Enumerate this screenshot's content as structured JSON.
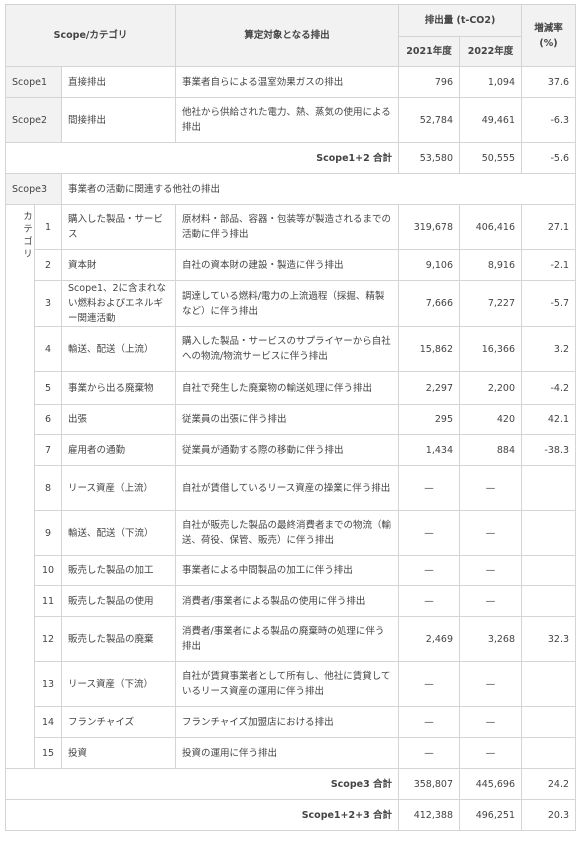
{
  "headers": {
    "scope_category": "Scope/カテゴリ",
    "target": "算定対象となる排出",
    "emissions": "排出量 (t-CO2)",
    "rate": "増減率 (%)",
    "year_2021": "2021年度",
    "year_2022": "2022年度"
  },
  "scope1": {
    "name": "Scope1",
    "label": "直接排出",
    "desc": "事業者自らによる温室効果ガスの排出",
    "v2021": "796",
    "v2022": "1,094",
    "rate": "37.6"
  },
  "scope2": {
    "name": "Scope2",
    "label": "間接排出",
    "desc": "他社から供給された電力、熱、蒸気の使用による排出",
    "v2021": "52,784",
    "v2022": "49,461",
    "rate": "-6.3"
  },
  "total12": {
    "label": "Scope1+2 合計",
    "v2021": "53,580",
    "v2022": "50,555",
    "rate": "-5.6"
  },
  "scope3": {
    "name": "Scope3",
    "label": "事業者の活動に関連する他社の排出",
    "category_label": "カテゴリ"
  },
  "categories": [
    {
      "no": "1",
      "name": "購入した製品・サービス",
      "desc": "原材料・部品、容器・包装等が製造されるまでの活動に伴う排出",
      "v2021": "319,678",
      "v2022": "406,416",
      "rate": "27.1"
    },
    {
      "no": "2",
      "name": "資本財",
      "desc": "自社の資本財の建設・製造に伴う排出",
      "v2021": "9,106",
      "v2022": "8,916",
      "rate": "-2.1"
    },
    {
      "no": "3",
      "name": "Scope1、2に含まれない燃料およびエネルギー関連活動",
      "desc": "調達している燃料/電力の上流過程（採掘、精製など）に伴う排出",
      "v2021": "7,666",
      "v2022": "7,227",
      "rate": "-5.7"
    },
    {
      "no": "4",
      "name": "輸送、配送（上流）",
      "desc": "購入した製品・サービスのサプライヤーから自社への物流/物流サービスに伴う排出",
      "v2021": "15,862",
      "v2022": "16,366",
      "rate": "3.2"
    },
    {
      "no": "5",
      "name": "事業から出る廃棄物",
      "desc": "自社で発生した廃棄物の輸送処理に伴う排出",
      "v2021": "2,297",
      "v2022": "2,200",
      "rate": "-4.2"
    },
    {
      "no": "6",
      "name": "出張",
      "desc": "従業員の出張に伴う排出",
      "v2021": "295",
      "v2022": "420",
      "rate": "42.1"
    },
    {
      "no": "7",
      "name": "雇用者の通勤",
      "desc": "従業員が通勤する際の移動に伴う排出",
      "v2021": "1,434",
      "v2022": "884",
      "rate": "-38.3"
    },
    {
      "no": "8",
      "name": "リース資産（上流）",
      "desc": "自社が賃借しているリース資産の操業に伴う排出",
      "v2021": "—",
      "v2022": "—",
      "rate": ""
    },
    {
      "no": "9",
      "name": "輸送、配送（下流）",
      "desc": "自社が販売した製品の最終消費者までの物流（輸送、荷役、保管、販売）に伴う排出",
      "v2021": "—",
      "v2022": "—",
      "rate": ""
    },
    {
      "no": "10",
      "name": "販売した製品の加工",
      "desc": "事業者による中間製品の加工に伴う排出",
      "v2021": "—",
      "v2022": "—",
      "rate": ""
    },
    {
      "no": "11",
      "name": "販売した製品の使用",
      "desc": "消費者/事業者による製品の使用に伴う排出",
      "v2021": "—",
      "v2022": "—",
      "rate": ""
    },
    {
      "no": "12",
      "name": "販売した製品の廃棄",
      "desc": "消費者/事業者による製品の廃棄時の処理に伴う排出",
      "v2021": "2,469",
      "v2022": "3,268",
      "rate": "32.3"
    },
    {
      "no": "13",
      "name": "リース資産（下流）",
      "desc": "自社が賃貸事業者として所有し、他社に賃貸しているリース資産の運用に伴う排出",
      "v2021": "—",
      "v2022": "—",
      "rate": ""
    },
    {
      "no": "14",
      "name": "フランチャイズ",
      "desc": "フランチャイズ加盟店における排出",
      "v2021": "—",
      "v2022": "—",
      "rate": ""
    },
    {
      "no": "15",
      "name": "投資",
      "desc": "投資の運用に伴う排出",
      "v2021": "—",
      "v2022": "—",
      "rate": ""
    }
  ],
  "total3": {
    "label": "Scope3 合計",
    "v2021": "358,807",
    "v2022": "445,696",
    "rate": "24.2"
  },
  "total123": {
    "label": "Scope1+2+3 合計",
    "v2021": "412,388",
    "v2022": "496,251",
    "rate": "20.3"
  }
}
